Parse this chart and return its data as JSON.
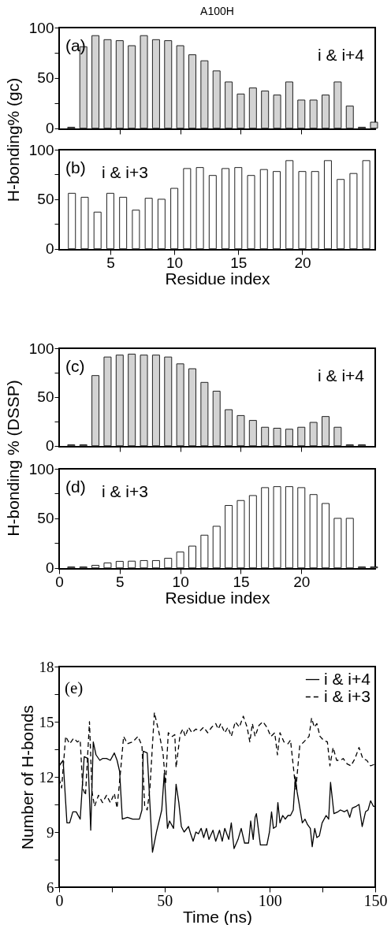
{
  "chart_data": [
    {
      "type": "bar",
      "title": "A100H",
      "ylabel": "H-bonding% (gc)",
      "annotations": [
        "(a)",
        "i & i+4"
      ],
      "color": "#d3d3d3",
      "tick_labels": "y",
      "x": [
        1,
        2,
        3,
        4,
        5,
        6,
        7,
        8,
        9,
        10,
        11,
        12,
        13,
        14,
        15,
        16,
        17,
        18,
        19,
        20,
        21,
        22,
        23,
        24,
        25,
        26
      ],
      "values": [
        1,
        81,
        92,
        88,
        87,
        82,
        92,
        88,
        87,
        82,
        73,
        67,
        57,
        46,
        34,
        40,
        37,
        33,
        46,
        28,
        28,
        33,
        46,
        22,
        1,
        6
      ],
      "xlim": [
        0,
        26.1
      ],
      "xticks": [
        5,
        10,
        15,
        20
      ],
      "ylim": [
        -1,
        100
      ],
      "yticks": [
        0,
        {
          "value": 25,
          "label": null
        },
        50,
        {
          "value": 75,
          "label": null
        },
        100
      ]
    },
    {
      "type": "bar",
      "xlabel": "Residue index",
      "annotations": [
        "(b)",
        "i & i+3"
      ],
      "color": "#ffffff",
      "x": [
        2,
        3,
        4,
        5,
        6,
        7,
        8,
        9,
        10,
        11,
        12,
        13,
        14,
        15,
        16,
        17,
        18,
        19,
        20,
        21,
        22,
        23,
        24,
        25
      ],
      "values": [
        56,
        52,
        37,
        56,
        52,
        39,
        51,
        50,
        61,
        81,
        82,
        74,
        81,
        82,
        74,
        80,
        78,
        89,
        78,
        78,
        89,
        70,
        76,
        89
      ],
      "xlim": [
        1,
        25.7
      ],
      "xticks": [
        5,
        10,
        15,
        20
      ],
      "ylim": [
        -1,
        100
      ],
      "yticks": [
        0,
        {
          "value": 25,
          "label": null
        },
        50,
        {
          "value": 75,
          "label": null
        },
        100
      ]
    },
    {
      "type": "bar",
      "ylabel": "H-bonding % (DSSP)",
      "annotations": [
        "(c)",
        "i & i+4"
      ],
      "color": "#d3d3d3",
      "tick_labels": "y",
      "x": [
        1,
        2,
        3,
        4,
        5,
        6,
        7,
        8,
        9,
        10,
        11,
        12,
        13,
        14,
        15,
        16,
        17,
        18,
        19,
        20,
        21,
        22,
        23,
        24,
        25
      ],
      "values": [
        1,
        1,
        72,
        91,
        93,
        94,
        93,
        93,
        91,
        84,
        79,
        65,
        56,
        37,
        31,
        26,
        19,
        18,
        17,
        19,
        24,
        30,
        19,
        1,
        1
      ],
      "xlim": [
        0,
        26.1
      ],
      "xticks": [
        5,
        10,
        15,
        20
      ],
      "ylim": [
        -1,
        100
      ],
      "yticks": [
        0,
        {
          "value": 25,
          "label": null
        },
        50,
        {
          "value": 75,
          "label": null
        },
        100
      ]
    },
    {
      "type": "bar",
      "xlabel": "Residue index",
      "annotations": [
        "(d)",
        "i & i+3"
      ],
      "color": "#ffffff",
      "x": [
        1,
        2,
        3,
        4,
        5,
        6,
        7,
        8,
        9,
        10,
        11,
        12,
        13,
        14,
        15,
        16,
        17,
        18,
        19,
        20,
        21,
        22,
        23,
        24,
        25,
        26
      ],
      "values": [
        1,
        1,
        2.6,
        5,
        6.6,
        6.8,
        7.4,
        7.4,
        9.7,
        16,
        22,
        33,
        42,
        63,
        68,
        73,
        81,
        82,
        82,
        81,
        74,
        65,
        50,
        50,
        1,
        1
      ],
      "xlim": [
        0,
        26.1
      ],
      "xticks": [
        0,
        5,
        10,
        15,
        20
      ],
      "ylim": [
        -1,
        100
      ],
      "yticks": [
        0,
        {
          "value": 25,
          "label": null
        },
        50,
        {
          "value": 75,
          "label": null
        },
        100
      ]
    },
    {
      "type": "line",
      "xlabel": "Time (ns)",
      "ylabel": "Number of H-bonds",
      "annotations": [
        "(e)"
      ],
      "legend": "top right",
      "xlim": [
        0,
        150
      ],
      "xticks": [
        0,
        {
          "value": 25,
          "label": null
        },
        50,
        {
          "value": 75,
          "label": null
        },
        100,
        {
          "value": 125,
          "label": null
        },
        150
      ],
      "ylim": [
        6,
        18
      ],
      "yticks": [
        6,
        {
          "value": 7.5,
          "label": null
        },
        9,
        {
          "value": 10.5,
          "label": null
        },
        12,
        {
          "value": 13.5,
          "label": null
        },
        15,
        {
          "value": 16.5,
          "label": null
        },
        18
      ],
      "series": [
        {
          "name": "i & i+4",
          "color": "#000000",
          "line_style": "solid",
          "x": [
            0,
            1.9,
            3.7,
            5,
            6.5,
            8.1,
            10,
            11.9,
            13.7,
            15,
            16.2,
            17.5,
            19.3,
            20.6,
            22.5,
            24.3,
            26.2,
            27.5,
            28.7,
            30,
            32.4,
            34.9,
            38.1,
            39.3,
            39.9,
            41.8,
            44.3,
            46.2,
            48.7,
            49.9,
            51.4,
            52.4,
            54.3,
            55.5,
            56.8,
            58,
            59.3,
            61.4,
            62.4,
            63.6,
            64.9,
            66.1,
            67.4,
            68.6,
            69.9,
            71.1,
            73,
            74.3,
            76.1,
            77.4,
            78.6,
            80.5,
            81.7,
            83,
            84.9,
            86.4,
            88,
            89.9,
            90.9,
            92.1,
            93,
            93.6,
            95.5,
            97.3,
            98.6,
            99.8,
            100.8,
            101.7,
            103,
            103.8,
            104.8,
            106.1,
            107.3,
            108.6,
            109.8,
            111.1,
            112.1,
            112.9,
            113.8,
            115.4,
            116.7,
            117.9,
            119.2,
            120.1,
            121.3,
            122.3,
            123.5,
            124.8,
            126.7,
            127.9,
            128.8,
            130.4,
            132.3,
            133.5,
            135.4,
            136.7,
            137.9,
            139.1,
            141,
            142.3,
            143.8,
            145.4,
            146.6,
            147.8,
            149.1,
            150
          ],
          "values": [
            12.6,
            12.9,
            9.5,
            9.5,
            10.1,
            10.1,
            9.7,
            13.1,
            13,
            9.1,
            13.9,
            13.2,
            12.9,
            13,
            13,
            12.9,
            13.3,
            12.9,
            12.3,
            9.7,
            9.8,
            9.7,
            9.7,
            10.2,
            13.4,
            13.3,
            7.9,
            9,
            10.2,
            12.2,
            9.2,
            9.6,
            9.2,
            11.6,
            10.6,
            9.3,
            9,
            9.3,
            8.9,
            8.5,
            9,
            8.9,
            9.2,
            8.7,
            9.2,
            8.6,
            9.1,
            8.5,
            9.1,
            8.5,
            9.2,
            8.6,
            9.5,
            8.1,
            8.6,
            9.2,
            8.4,
            8.4,
            9.6,
            8.6,
            9.8,
            10,
            8.3,
            8.3,
            8.3,
            9,
            10.1,
            9.2,
            9.3,
            10.6,
            9.5,
            9.9,
            9.7,
            9.9,
            9.9,
            10.2,
            12,
            11.2,
            10.6,
            9.5,
            9.7,
            9.4,
            9.2,
            8.2,
            9.2,
            8.7,
            8.8,
            9.5,
            9.9,
            9.7,
            11.7,
            10,
            10.1,
            10.2,
            10.1,
            10.2,
            9.8,
            10.3,
            10.4,
            10.5,
            9.3,
            10.1,
            10.2,
            10.7,
            10.4,
            10.4
          ]
        },
        {
          "name": "i & i+3",
          "color": "#000000",
          "line_style": "dashed",
          "x": [
            0,
            1.2,
            3.1,
            5,
            6.9,
            8.7,
            10,
            11.2,
            12.5,
            14.4,
            15.6,
            16.8,
            18.7,
            20.6,
            22.5,
            24.3,
            26.2,
            27.5,
            29.3,
            30.6,
            32.4,
            34.9,
            37.4,
            39.3,
            40.6,
            41.8,
            43.1,
            45.2,
            47.4,
            49.3,
            50.5,
            51.8,
            53.7,
            54.9,
            55.5,
            57.4,
            58.7,
            59.9,
            61.4,
            63,
            64.9,
            66.8,
            68.6,
            70.5,
            72.4,
            74.3,
            75.5,
            76.7,
            78.6,
            80.1,
            81.7,
            83.6,
            85.5,
            87.4,
            89.2,
            90.5,
            91.7,
            93,
            94.8,
            96.7,
            98.6,
            100.5,
            102.3,
            103.6,
            104.8,
            106.7,
            108.6,
            109.8,
            111.1,
            112.3,
            114.2,
            116.1,
            118.6,
            119.8,
            121.1,
            122.3,
            123.8,
            125.4,
            127.3,
            128.5,
            130,
            131.7,
            133.5,
            134.8,
            136.7,
            138.5,
            140.4,
            142.3,
            144.1,
            146,
            147.8,
            150
          ],
          "values": [
            11.9,
            11.4,
            14.2,
            13.8,
            14.1,
            13.9,
            14,
            11.4,
            11,
            15,
            11.2,
            10.4,
            11,
            10.6,
            11,
            10.6,
            11.1,
            10.3,
            12.5,
            14.2,
            13.8,
            13.9,
            14.2,
            13.7,
            10.4,
            10.2,
            11.4,
            15.5,
            14.4,
            13.3,
            11.6,
            14.4,
            14.2,
            14.3,
            12.5,
            14.3,
            14.6,
            14.2,
            14.7,
            14.4,
            14.6,
            14.5,
            14.7,
            14.4,
            14.7,
            14.9,
            14.6,
            14.9,
            14.4,
            14.7,
            14.2,
            15,
            14.7,
            15.3,
            14.7,
            13.9,
            14.9,
            14.2,
            14.8,
            15,
            14.7,
            14.2,
            14.4,
            13.2,
            14.4,
            13.9,
            13.8,
            14,
            12.6,
            11.3,
            13.7,
            13.9,
            14.2,
            15.2,
            14.7,
            14.9,
            14.2,
            14,
            13.9,
            12.6,
            13.6,
            12.9,
            12.9,
            13,
            12.7,
            12.6,
            13,
            13.6,
            13,
            12.9,
            12.6,
            12.7
          ]
        }
      ]
    }
  ]
}
